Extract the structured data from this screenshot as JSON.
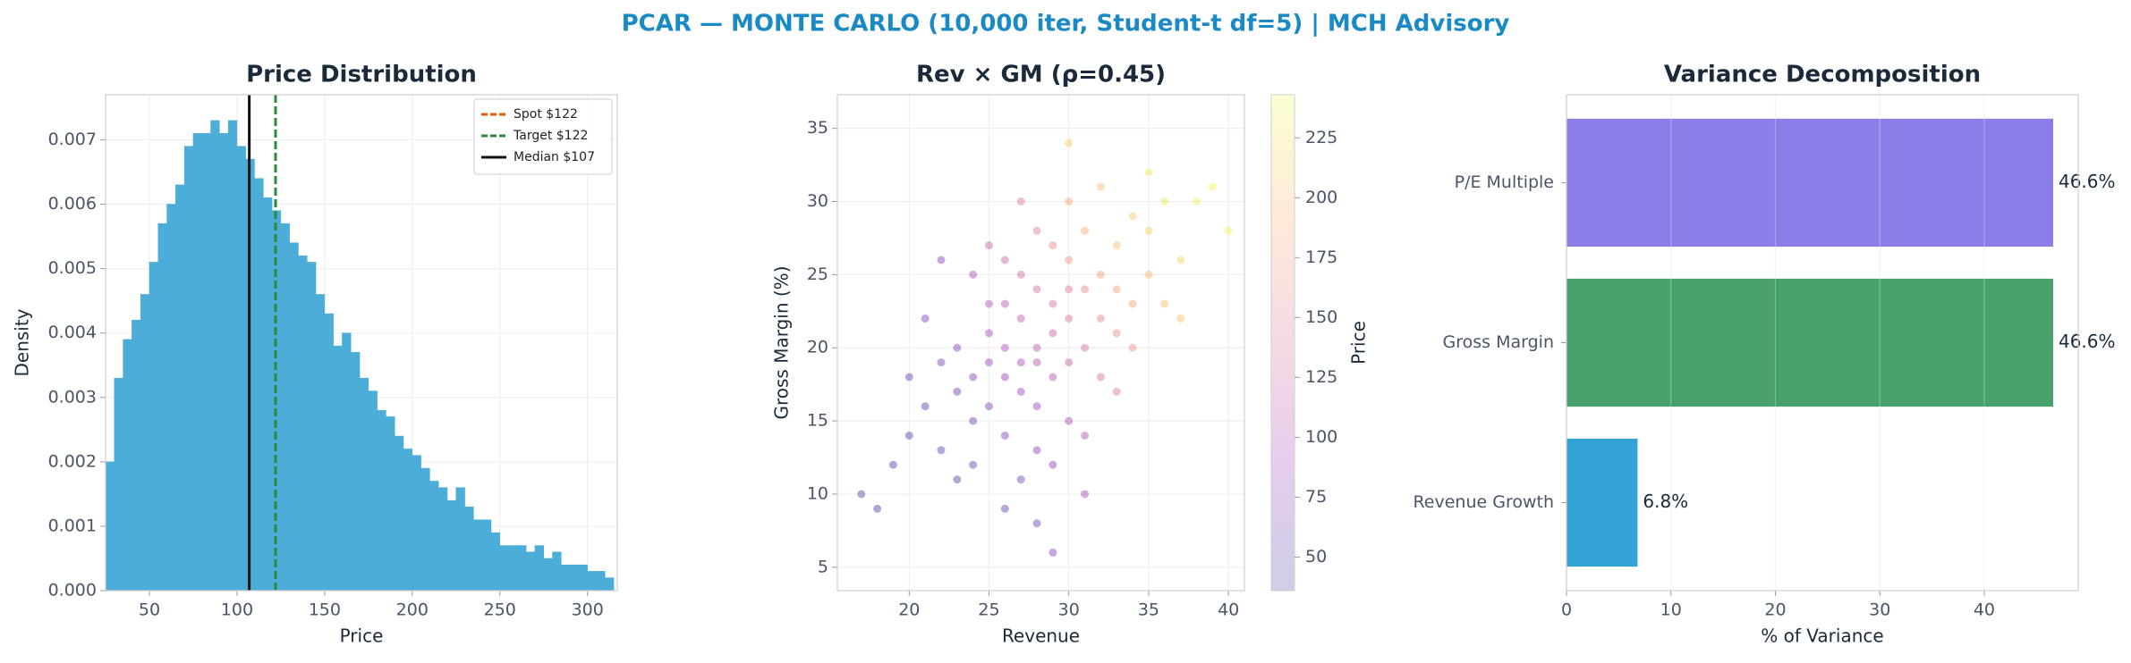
{
  "title": "PCAR — MONTE CARLO (10,000 iter, Student-t df=5) | MCH Advisory",
  "chart_data": [
    {
      "type": "histogram",
      "title": "Price Distribution",
      "xlabel": "Price",
      "ylabel": "Density",
      "color": "#4badd8",
      "bins": [
        25,
        30,
        35,
        40,
        45,
        50,
        55,
        60,
        65,
        70,
        75,
        80,
        85,
        90,
        95,
        100,
        105,
        110,
        115,
        120,
        125,
        130,
        135,
        140,
        145,
        150,
        155,
        160,
        165,
        170,
        175,
        180,
        185,
        190,
        195,
        200,
        205,
        210,
        215,
        220,
        225,
        230,
        235,
        240,
        245,
        250,
        255,
        260,
        265,
        270,
        275,
        280,
        285,
        290,
        295,
        300,
        305,
        310,
        315
      ],
      "values": [
        0.002,
        0.0033,
        0.0039,
        0.0042,
        0.0046,
        0.0051,
        0.0057,
        0.006,
        0.0063,
        0.0069,
        0.0071,
        0.0071,
        0.0073,
        0.0071,
        0.0073,
        0.0069,
        0.0067,
        0.0064,
        0.0061,
        0.0059,
        0.0057,
        0.0054,
        0.0052,
        0.0051,
        0.0046,
        0.0043,
        0.0038,
        0.004,
        0.0037,
        0.0033,
        0.0031,
        0.0028,
        0.0027,
        0.0024,
        0.0022,
        0.0021,
        0.0019,
        0.0017,
        0.0016,
        0.0014,
        0.0016,
        0.0013,
        0.0011,
        0.0011,
        0.0009,
        0.0007,
        0.0007,
        0.0007,
        0.0006,
        0.0007,
        0.0005,
        0.0006,
        0.0004,
        0.0004,
        0.0004,
        0.0003,
        0.0003,
        0.0002
      ],
      "xlim": [
        25,
        317
      ],
      "ylim": [
        0,
        0.0077
      ],
      "xticks": [
        50,
        100,
        150,
        200,
        250,
        300
      ],
      "yticks": [
        {
          "value": 0,
          "label": "0.000"
        },
        0.001,
        0.002,
        0.003,
        0.004,
        0.005,
        0.006,
        0.007
      ],
      "grid": true,
      "legend": "upper right",
      "vlines": [
        {
          "name": "Spot $122",
          "x": 122,
          "color": "#e8590c",
          "style": "dashed"
        },
        {
          "name": "Target $122",
          "x": 122,
          "color": "#2b8a3e",
          "style": "dashed"
        },
        {
          "name": "Median $107",
          "x": 107,
          "color": "#111111",
          "style": "solid"
        }
      ]
    },
    {
      "type": "scatter",
      "title": "Rev × GM (ρ=0.45)",
      "xlabel": "Revenue",
      "ylabel": "Gross Margin (%)",
      "colormap": "plasma",
      "clabel": "Price",
      "clim": [
        36,
        243
      ],
      "cticks": [
        50,
        75,
        100,
        125,
        150,
        175,
        200,
        225
      ],
      "x": [
        28,
        26,
        30,
        32,
        24,
        27,
        29,
        31,
        33,
        25,
        22,
        35,
        27,
        29,
        30,
        26,
        28,
        34,
        23,
        31,
        36,
        25,
        28,
        32,
        27,
        24,
        30,
        33,
        26,
        29,
        21,
        37,
        28,
        31,
        25,
        30,
        34,
        27,
        23,
        32,
        26,
        29,
        35,
        24,
        28,
        31,
        22,
        33,
        27,
        38,
        19,
        20,
        18,
        17,
        40,
        36,
        25,
        30,
        32,
        28,
        24,
        29,
        34,
        21,
        26,
        35,
        30,
        23,
        33,
        27,
        37,
        22,
        31,
        29,
        39,
        20,
        25,
        28,
        26,
        30
      ],
      "y": [
        20,
        18,
        22,
        25,
        15,
        17,
        21,
        24,
        27,
        19,
        13,
        28,
        22,
        18,
        26,
        14,
        24,
        23,
        17,
        20,
        30,
        21,
        16,
        22,
        25,
        12,
        19,
        24,
        20,
        27,
        16,
        26,
        13,
        28,
        23,
        15,
        29,
        19,
        20,
        18,
        26,
        23,
        25,
        18,
        28,
        14,
        19,
        21,
        11,
        30,
        12,
        14,
        9,
        10,
        28,
        23,
        27,
        30,
        31,
        8,
        25,
        12,
        20,
        22,
        9,
        32,
        34,
        11,
        17,
        30,
        22,
        26,
        10,
        6,
        31,
        18,
        16,
        19,
        23,
        24
      ],
      "c": [
        110,
        85,
        140,
        175,
        65,
        90,
        120,
        160,
        200,
        85,
        50,
        215,
        115,
        105,
        165,
        70,
        135,
        180,
        62,
        135,
        230,
        95,
        90,
        155,
        130,
        55,
        120,
        175,
        100,
        160,
        50,
        215,
        80,
        185,
        105,
        100,
        210,
        100,
        72,
        135,
        125,
        135,
        195,
        75,
        150,
        105,
        60,
        160,
        65,
        235,
        40,
        45,
        38,
        36,
        240,
        200,
        120,
        185,
        200,
        60,
        100,
        85,
        165,
        65,
        55,
        230,
        210,
        50,
        140,
        140,
        205,
        80,
        95,
        70,
        240,
        52,
        75,
        105,
        110,
        150
      ],
      "xlim": [
        15.5,
        41
      ],
      "ylim": [
        3.4,
        37.3
      ],
      "xticks": [
        20,
        25,
        30,
        35,
        40
      ],
      "yticks": [
        5,
        10,
        15,
        20,
        25,
        30,
        35
      ],
      "grid": true
    },
    {
      "type": "barh",
      "title": "Variance Decomposition",
      "xlabel": "% of Variance",
      "categories": [
        "Revenue Growth",
        "Gross Margin",
        "P/E Multiple"
      ],
      "values": [
        6.8,
        46.6,
        46.6
      ],
      "value_labels": [
        "6.8%",
        "46.6%",
        "46.6%"
      ],
      "colors": [
        "#33a3d6",
        "#48a06c",
        "#8a7fe8"
      ],
      "xlim": [
        0,
        49
      ],
      "xticks": [
        0,
        10,
        20,
        30,
        40
      ],
      "grid": true
    }
  ]
}
